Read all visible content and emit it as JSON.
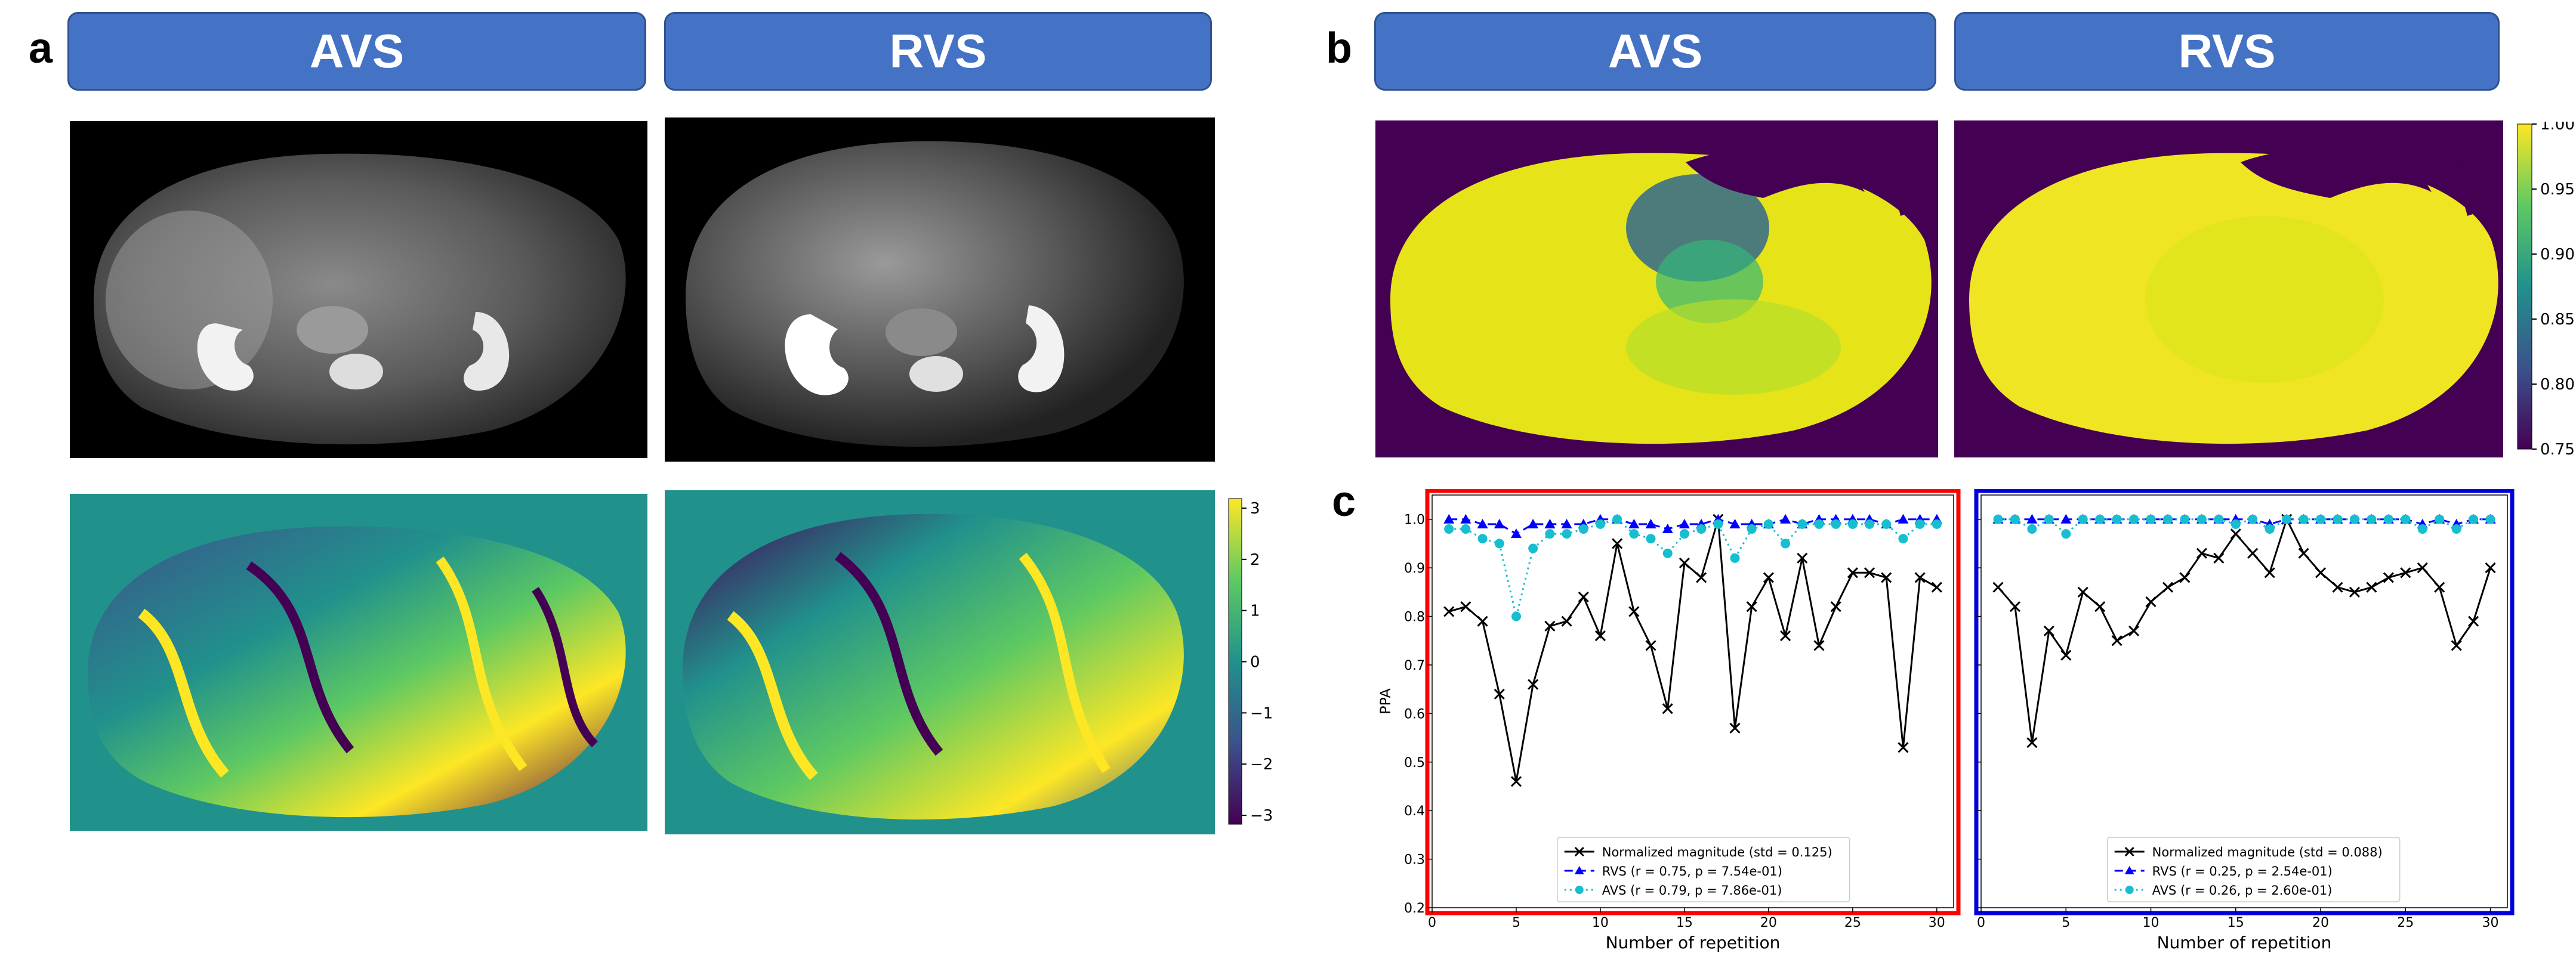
{
  "panels": {
    "a": "a",
    "b": "b",
    "c": "c"
  },
  "headers": {
    "avs": "AVS",
    "rvs": "RVS"
  },
  "phase_colorbar": {
    "ticks": [
      "3",
      "2",
      "1",
      "0",
      "−1",
      "−2",
      "−3"
    ]
  },
  "ppa_colorbar": {
    "ticks": [
      "1.00",
      "0.95",
      "0.90",
      "0.85",
      "0.80",
      "0.75"
    ]
  },
  "colors": {
    "header_fill": "#4472c4",
    "frame_left": "#ff0000",
    "frame_right": "#0000dd",
    "magnitude": "#000000",
    "rvs": "#0000ff",
    "avs": "#17becf"
  },
  "chart_data": [
    {
      "type": "line",
      "frame_color": "red",
      "ylabel": "PPA",
      "xlabel": "Number of repetition",
      "xlim": [
        0,
        31
      ],
      "ylim": [
        0.2,
        1.05
      ],
      "x_ticks": [
        "0",
        "5",
        "10",
        "15",
        "20",
        "25",
        "30"
      ],
      "y_ticks": [
        "0.2",
        "0.3",
        "0.4",
        "0.5",
        "0.6",
        "0.7",
        "0.8",
        "0.9",
        "1.0"
      ],
      "x": [
        1,
        2,
        3,
        4,
        5,
        6,
        7,
        8,
        9,
        10,
        11,
        12,
        13,
        14,
        15,
        16,
        17,
        18,
        19,
        20,
        21,
        22,
        23,
        24,
        25,
        26,
        27,
        28,
        29,
        30
      ],
      "series": [
        {
          "name": "Normalized magnitude (std = 0.125)",
          "marker": "x",
          "values": [
            0.81,
            0.82,
            0.79,
            0.64,
            0.46,
            0.66,
            0.78,
            0.79,
            0.84,
            0.76,
            0.95,
            0.81,
            0.74,
            0.61,
            0.91,
            0.88,
            1.0,
            0.57,
            0.82,
            0.88,
            0.76,
            0.92,
            0.74,
            0.82,
            0.89,
            0.89,
            0.88,
            0.53,
            0.88,
            0.86
          ]
        },
        {
          "name": "RVS (r = 0.75, p = 7.54e-01)",
          "marker": "triangle",
          "values": [
            1.0,
            1.0,
            0.99,
            0.99,
            0.97,
            0.99,
            0.99,
            0.99,
            0.99,
            1.0,
            1.0,
            0.99,
            0.99,
            0.98,
            0.99,
            0.99,
            1.0,
            0.99,
            0.99,
            0.99,
            1.0,
            0.99,
            1.0,
            1.0,
            1.0,
            1.0,
            0.99,
            1.0,
            1.0,
            1.0
          ]
        },
        {
          "name": "AVS (r = 0.79, p = 7.86e-01)",
          "marker": "circle",
          "values": [
            0.98,
            0.98,
            0.96,
            0.95,
            0.8,
            0.94,
            0.97,
            0.97,
            0.98,
            0.99,
            1.0,
            0.97,
            0.96,
            0.93,
            0.97,
            0.98,
            0.99,
            0.92,
            0.98,
            0.99,
            0.95,
            0.99,
            0.99,
            0.99,
            0.99,
            0.99,
            0.99,
            0.96,
            0.99,
            0.99
          ]
        }
      ]
    },
    {
      "type": "line",
      "frame_color": "blue",
      "xlabel": "Number of repetition",
      "xlim": [
        0,
        31
      ],
      "ylim": [
        0.2,
        1.05
      ],
      "x_ticks": [
        "0",
        "5",
        "10",
        "15",
        "20",
        "25",
        "30"
      ],
      "x": [
        1,
        2,
        3,
        4,
        5,
        6,
        7,
        8,
        9,
        10,
        11,
        12,
        13,
        14,
        15,
        16,
        17,
        18,
        19,
        20,
        21,
        22,
        23,
        24,
        25,
        26,
        27,
        28,
        29,
        30
      ],
      "series": [
        {
          "name": "Normalized magnitude (std = 0.088)",
          "marker": "x",
          "values": [
            0.86,
            0.82,
            0.54,
            0.77,
            0.72,
            0.85,
            0.82,
            0.75,
            0.77,
            0.83,
            0.86,
            0.88,
            0.93,
            0.92,
            0.97,
            0.93,
            0.89,
            1.0,
            0.93,
            0.89,
            0.86,
            0.85,
            0.86,
            0.88,
            0.89,
            0.9,
            0.86,
            0.74,
            0.79,
            0.9
          ]
        },
        {
          "name": "RVS (r = 0.25, p = 2.54e-01)",
          "marker": "triangle",
          "values": [
            1.0,
            1.0,
            1.0,
            1.0,
            1.0,
            1.0,
            1.0,
            1.0,
            1.0,
            1.0,
            1.0,
            1.0,
            1.0,
            1.0,
            1.0,
            1.0,
            0.99,
            1.0,
            1.0,
            1.0,
            1.0,
            1.0,
            1.0,
            1.0,
            1.0,
            0.99,
            1.0,
            0.99,
            1.0,
            1.0
          ]
        },
        {
          "name": "AVS (r = 0.26, p = 2.60e-01)",
          "marker": "circle",
          "values": [
            1.0,
            1.0,
            0.98,
            1.0,
            0.97,
            1.0,
            1.0,
            1.0,
            1.0,
            1.0,
            1.0,
            1.0,
            1.0,
            1.0,
            0.99,
            1.0,
            0.98,
            1.0,
            1.0,
            1.0,
            1.0,
            1.0,
            1.0,
            1.0,
            1.0,
            0.98,
            1.0,
            0.98,
            1.0,
            1.0
          ]
        }
      ]
    }
  ]
}
